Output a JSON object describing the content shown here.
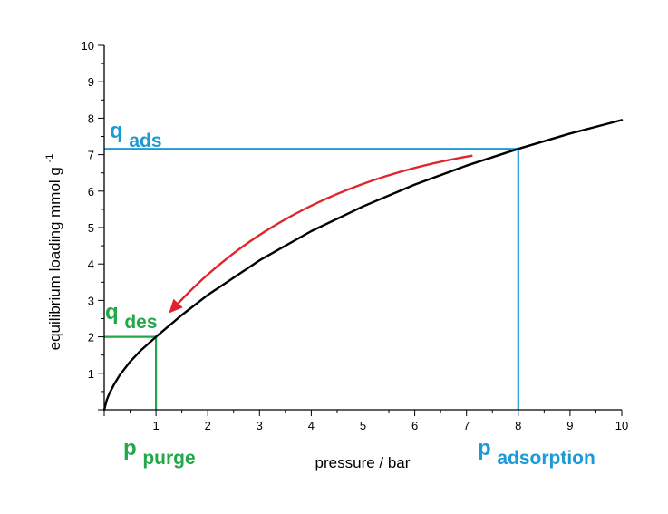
{
  "chart_data": {
    "type": "line",
    "xlabel": "pressure / bar",
    "ylabel": "equilibrium loading mmol g",
    "ylabel_sup": "-1",
    "xlim": [
      0,
      10
    ],
    "ylim": [
      0,
      10
    ],
    "xticks": [
      1,
      2,
      3,
      4,
      5,
      6,
      7,
      8,
      9,
      10
    ],
    "yticks": [
      1,
      2,
      3,
      4,
      5,
      6,
      7,
      8,
      9,
      10
    ],
    "grid": false,
    "series": [
      {
        "color": "#000000",
        "x": [
          0,
          0.05,
          0.1,
          0.2,
          0.3,
          0.5,
          0.7,
          1.0,
          1.5,
          2.0,
          3.0,
          4.0,
          5.0,
          6.0,
          7.0,
          8.0,
          9.0,
          10.0
        ],
        "y": [
          0,
          0.27,
          0.45,
          0.72,
          0.95,
          1.32,
          1.62,
          2.0,
          2.6,
          3.15,
          4.1,
          4.9,
          5.58,
          6.18,
          6.7,
          7.16,
          7.58,
          7.95
        ]
      }
    ],
    "annotations": {
      "adsorption": {
        "color": "#1a9ad6",
        "x": 8,
        "y": 7.16,
        "q_main": "q",
        "q_sub": "ads",
        "p_main": "p",
        "p_sub": "adsorption"
      },
      "desorption": {
        "color": "#22a84a",
        "x": 1,
        "y": 2.0,
        "q_main": "q",
        "q_sub": "des",
        "p_main": "p",
        "p_sub": "purge"
      },
      "arrow": {
        "color": "#e0242a",
        "from": [
          7.1,
          6.97
        ],
        "ctrl": [
          3.5,
          6.1
        ],
        "to": [
          1.25,
          2.65
        ]
      }
    }
  }
}
